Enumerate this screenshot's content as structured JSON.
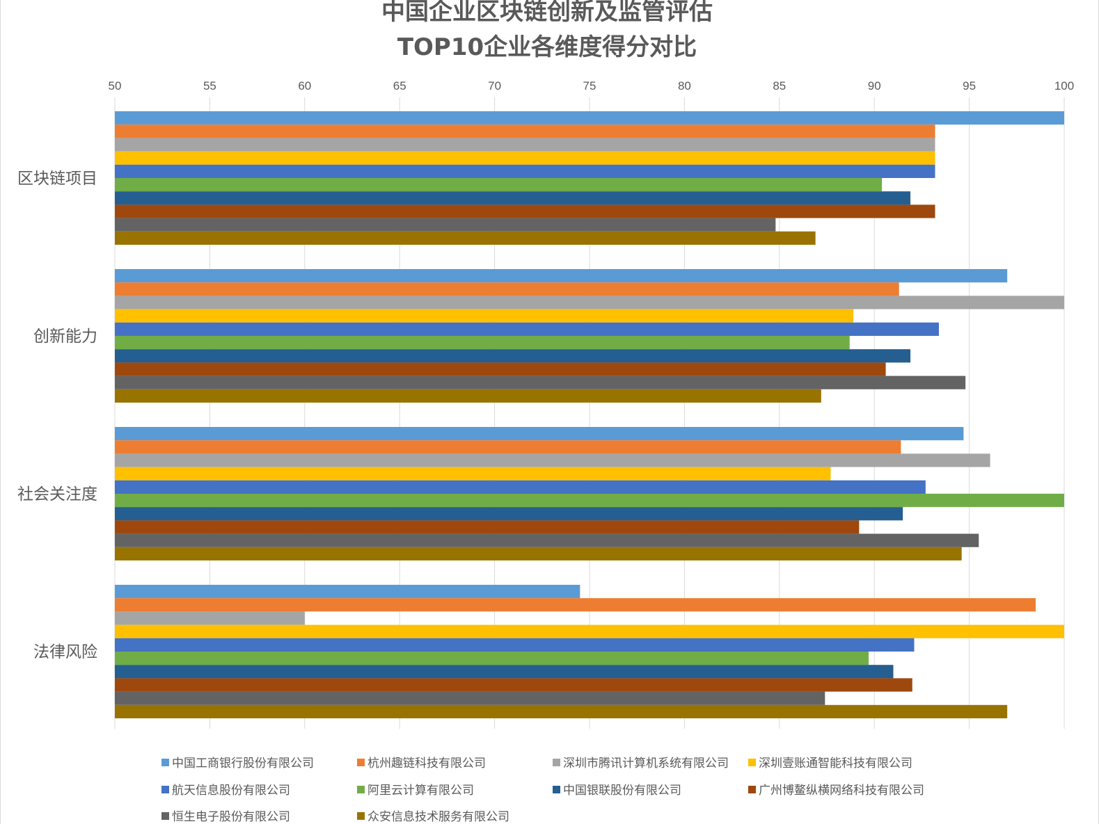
{
  "chart_data": {
    "type": "bar",
    "orientation": "horizontal",
    "title_lines": [
      "中国企业区块链创新及监管评估",
      "TOP10企业各维度得分对比"
    ],
    "xlim": [
      50,
      100
    ],
    "x_ticks": [
      "50",
      "55",
      "60",
      "65",
      "70",
      "75",
      "80",
      "85",
      "90",
      "95",
      "100"
    ],
    "x_tick_values": [
      50,
      55,
      60,
      65,
      70,
      75,
      80,
      85,
      90,
      95,
      100
    ],
    "grid": true,
    "legend_position": "bottom",
    "categories": [
      "区块链项目",
      "创新能力",
      "社会关注度",
      "法律风险"
    ],
    "series": [
      {
        "name": "中国工商银行股份有限公司",
        "color": "#5B9BD5",
        "values": [
          100,
          97,
          94.7,
          74.5
        ]
      },
      {
        "name": "杭州趣链科技有限公司",
        "color": "#ED7D31",
        "values": [
          93.2,
          91.3,
          91.4,
          98.5
        ]
      },
      {
        "name": "深圳市腾讯计算机系统有限公司",
        "color": "#A5A5A5",
        "values": [
          93.2,
          100,
          96.1,
          60
        ]
      },
      {
        "name": "深圳壹账通智能科技有限公司",
        "color": "#FFC000",
        "values": [
          93.2,
          88.9,
          87.7,
          100
        ]
      },
      {
        "name": "航天信息股份有限公司",
        "color": "#4472C4",
        "values": [
          93.2,
          93.4,
          92.7,
          92.1
        ]
      },
      {
        "name": "阿里云计算有限公司",
        "color": "#70AD47",
        "values": [
          90.4,
          88.7,
          100,
          89.7
        ]
      },
      {
        "name": "中国银联股份有限公司",
        "color": "#255E91",
        "values": [
          91.9,
          91.9,
          91.5,
          91
        ]
      },
      {
        "name": "广州博鳌纵横网络科技有限公司",
        "color": "#9E480E",
        "values": [
          93.2,
          90.6,
          89.2,
          92
        ]
      },
      {
        "name": "恒生电子股份有限公司",
        "color": "#636363",
        "values": [
          84.8,
          94.8,
          95.5,
          87.4
        ]
      },
      {
        "name": "众安信息技术服务有限公司",
        "color": "#997300",
        "values": [
          86.9,
          87.2,
          94.6,
          97
        ]
      }
    ]
  }
}
